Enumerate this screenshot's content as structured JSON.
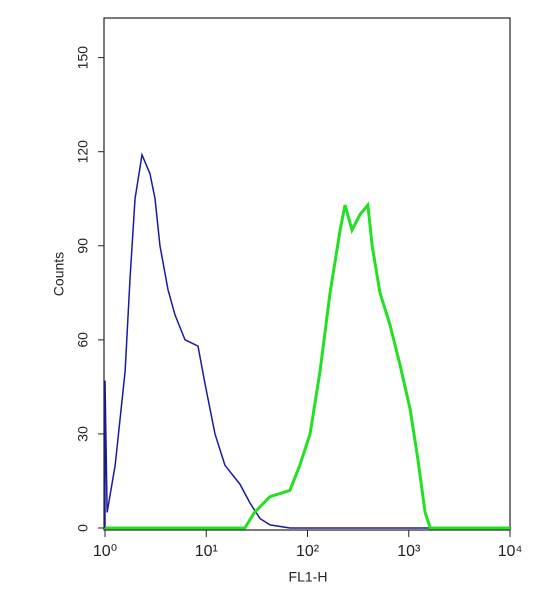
{
  "chart_data": {
    "type": "line",
    "xlabel": "FL1-H",
    "ylabel": "Counts",
    "xscale": "log",
    "xlim": [
      1,
      10000
    ],
    "ylim": [
      0,
      162
    ],
    "xticks": [
      {
        "value": 1,
        "label": "10⁰"
      },
      {
        "value": 10,
        "label": "10¹"
      },
      {
        "value": 100,
        "label": "10²"
      },
      {
        "value": 1000,
        "label": "10³"
      },
      {
        "value": 10000,
        "label": "10⁴"
      }
    ],
    "yticks": [
      0,
      30,
      60,
      90,
      120,
      150
    ],
    "series": [
      {
        "color": "#1a1aa0",
        "x": [
          1,
          1,
          1.05,
          1.26,
          1.58,
          1.77,
          1.98,
          2.32,
          2.78,
          3.12,
          3.49,
          4.19,
          4.91,
          6.17,
          8.29,
          9.72,
          12.2,
          15.3,
          21.5,
          27,
          34,
          42.6,
          67,
          10000
        ],
        "values": [
          0,
          47,
          5,
          20,
          50,
          80,
          105,
          119,
          113,
          105,
          90,
          76,
          68,
          60,
          58,
          46,
          30,
          20,
          14,
          8,
          3,
          1,
          0,
          0
        ]
      },
      {
        "color": "#22e022",
        "x": [
          1,
          24,
          30,
          42.6,
          67,
          84,
          106,
          133,
          167,
          210,
          235,
          275,
          330,
          395,
          435,
          520,
          650,
          820,
          1030,
          1230,
          1450,
          1630,
          10000
        ],
        "values": [
          0,
          0,
          5,
          10,
          12,
          20,
          30,
          50,
          75,
          95,
          103,
          95,
          100,
          103,
          90,
          75,
          65,
          52,
          38,
          22,
          5,
          0,
          0
        ]
      }
    ]
  }
}
